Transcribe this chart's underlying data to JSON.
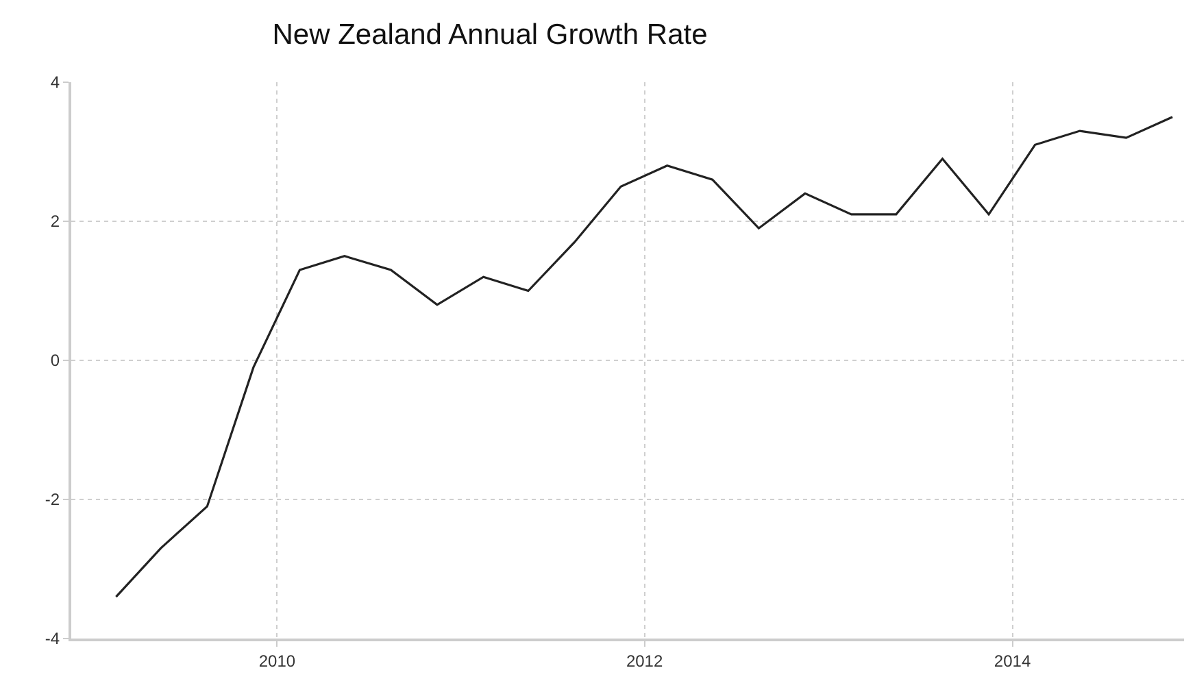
{
  "chart_data": {
    "type": "line",
    "title": "New Zealand Annual Growth Rate",
    "x": [
      "2009-02-15",
      "2009-05-15",
      "2009-08-15",
      "2009-11-15",
      "2010-02-15",
      "2010-05-15",
      "2010-08-15",
      "2010-11-15",
      "2011-02-15",
      "2011-05-15",
      "2011-08-15",
      "2011-11-15",
      "2012-02-15",
      "2012-05-15",
      "2012-08-15",
      "2012-11-15",
      "2013-02-15",
      "2013-05-15",
      "2013-08-15",
      "2013-11-15",
      "2014-02-15",
      "2014-05-15",
      "2014-08-15",
      "2014-11-15"
    ],
    "series": [
      {
        "color": "#222222",
        "values": [
          -3.4,
          -2.7,
          -2.1,
          -0.1,
          1.3,
          1.5,
          1.3,
          0.8,
          1.2,
          1.0,
          1.7,
          2.5,
          2.8,
          2.6,
          1.9,
          2.4,
          2.1,
          2.1,
          2.9,
          2.1,
          3.1,
          3.3,
          3.2,
          3.5
        ]
      }
    ],
    "xlim": [
      "2008-11-18",
      "2014-12-08"
    ],
    "xticks": [
      "2010",
      "2012",
      "2014"
    ],
    "ylim": [
      -4,
      4
    ],
    "yticks": [
      -4,
      -2,
      0,
      2,
      4
    ],
    "grid": true,
    "marker": "none",
    "line_style": "solid"
  }
}
